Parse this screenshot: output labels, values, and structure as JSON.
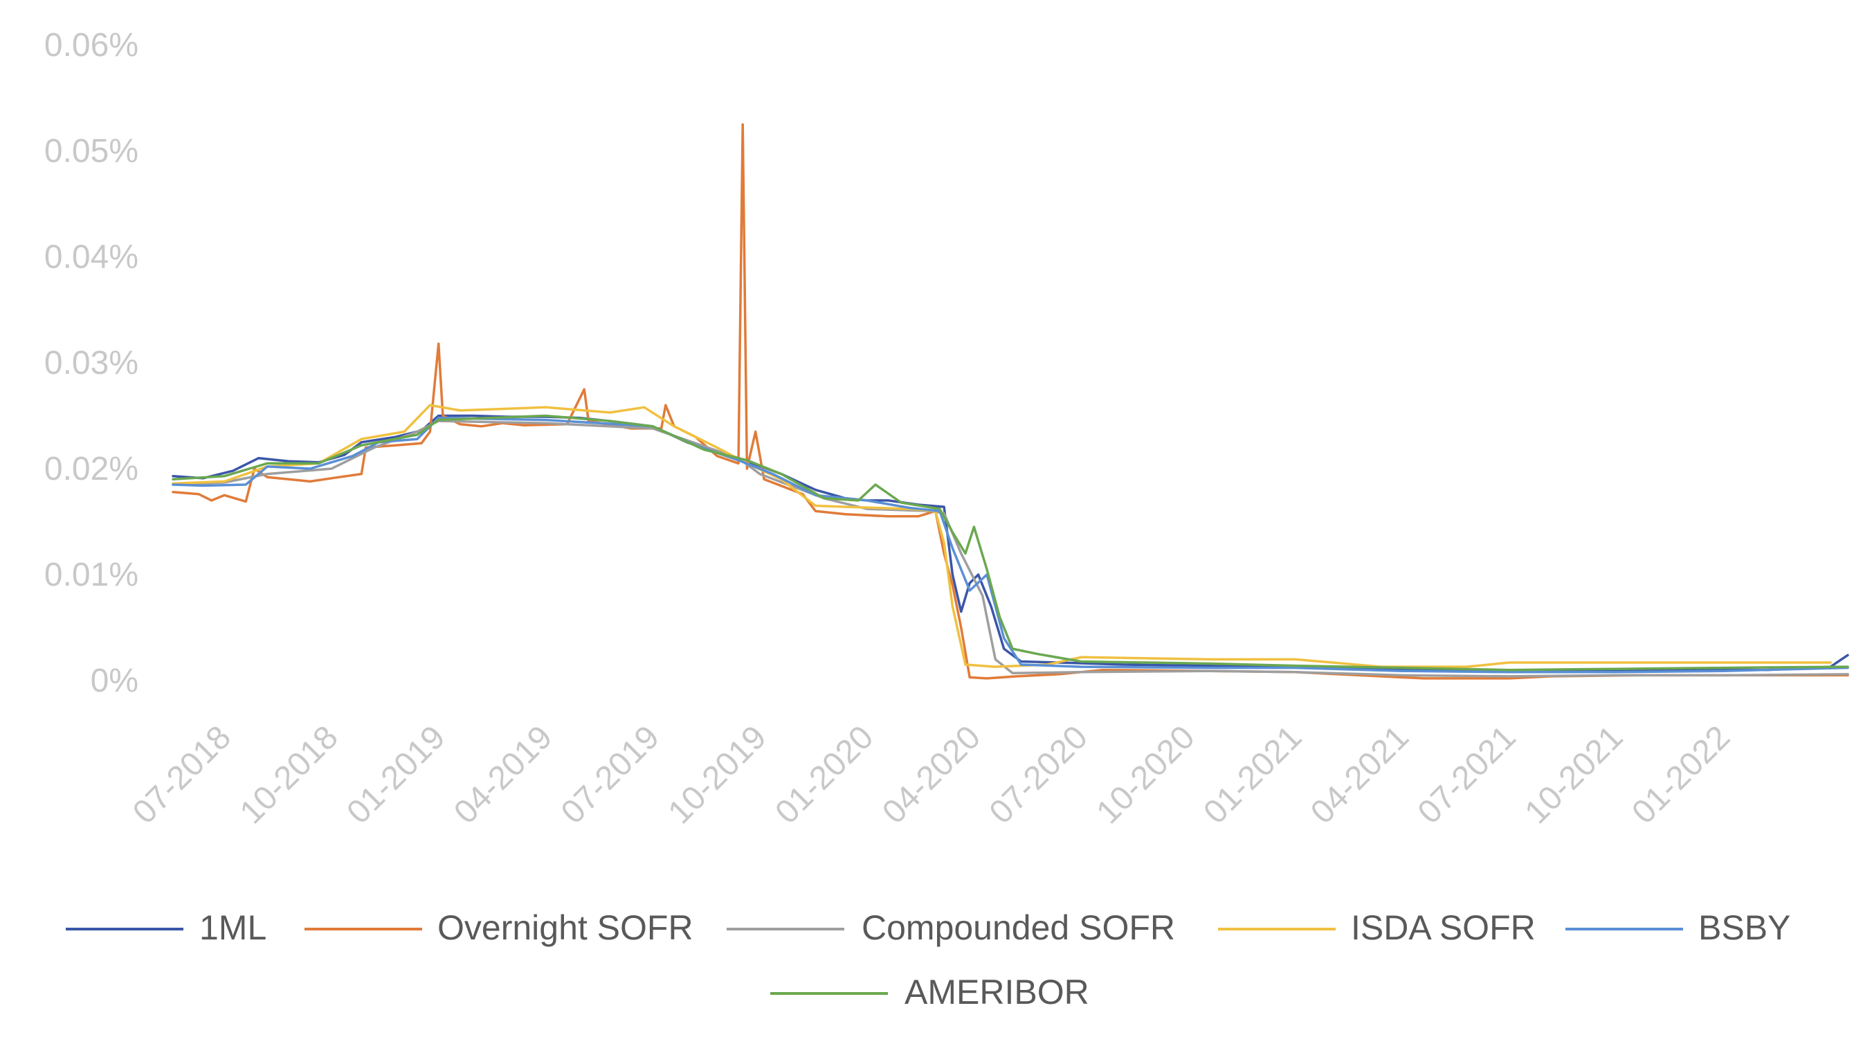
{
  "chart_data": {
    "type": "line",
    "title": "",
    "xlabel": "",
    "ylabel": "",
    "ylim": [
      0,
      0.06
    ],
    "y_ticks": [
      "0%",
      "0.01%",
      "0.02%",
      "0.03%",
      "0.04%",
      "0.05%",
      "0.06%"
    ],
    "y_tick_values": [
      0,
      0.01,
      0.02,
      0.03,
      0.04,
      0.05,
      0.06
    ],
    "x_range": [
      2018.38,
      2022.29
    ],
    "x_ticks": [
      "07-2018",
      "10-2018",
      "01-2019",
      "04-2019",
      "07-2019",
      "10-2019",
      "01-2020",
      "04-2020",
      "07-2020",
      "10-2020",
      "01-2021",
      "04-2021",
      "07-2021",
      "10-2021",
      "01-2022"
    ],
    "x_tick_values": [
      2018.5,
      2018.75,
      2019.0,
      2019.25,
      2019.5,
      2019.75,
      2020.0,
      2020.25,
      2020.5,
      2020.75,
      2021.0,
      2021.25,
      2021.5,
      2021.75,
      2022.0
    ],
    "grid": false,
    "legend_position": "bottom",
    "series": [
      {
        "name": "1ML",
        "color": "#3a56a8",
        "points": [
          [
            2018.38,
            0.0193
          ],
          [
            2018.45,
            0.0191
          ],
          [
            2018.52,
            0.0198
          ],
          [
            2018.58,
            0.021
          ],
          [
            2018.65,
            0.0207
          ],
          [
            2018.72,
            0.0206
          ],
          [
            2018.78,
            0.0213
          ],
          [
            2018.82,
            0.0225
          ],
          [
            2018.9,
            0.023
          ],
          [
            2018.96,
            0.0236
          ],
          [
            2019.0,
            0.025
          ],
          [
            2019.08,
            0.025
          ],
          [
            2019.16,
            0.0249
          ],
          [
            2019.25,
            0.0249
          ],
          [
            2019.33,
            0.0248
          ],
          [
            2019.42,
            0.0244
          ],
          [
            2019.5,
            0.024
          ],
          [
            2019.58,
            0.0225
          ],
          [
            2019.65,
            0.0215
          ],
          [
            2019.72,
            0.0207
          ],
          [
            2019.8,
            0.0195
          ],
          [
            2019.88,
            0.018
          ],
          [
            2019.95,
            0.0172
          ],
          [
            2020.0,
            0.017
          ],
          [
            2020.05,
            0.017
          ],
          [
            2020.12,
            0.0166
          ],
          [
            2020.18,
            0.0164
          ],
          [
            2020.2,
            0.01
          ],
          [
            2020.22,
            0.0065
          ],
          [
            2020.24,
            0.0092
          ],
          [
            2020.26,
            0.01
          ],
          [
            2020.29,
            0.007
          ],
          [
            2020.32,
            0.003
          ],
          [
            2020.36,
            0.0018
          ],
          [
            2020.45,
            0.0017
          ],
          [
            2020.6,
            0.0015
          ],
          [
            2020.8,
            0.0014
          ],
          [
            2021.0,
            0.0013
          ],
          [
            2021.2,
            0.0011
          ],
          [
            2021.4,
            0.001
          ],
          [
            2021.55,
            0.0009
          ],
          [
            2021.7,
            0.0009
          ],
          [
            2021.9,
            0.001
          ],
          [
            2022.1,
            0.001
          ],
          [
            2022.25,
            0.0013
          ],
          [
            2022.29,
            0.0024
          ]
        ]
      },
      {
        "name": "Overnight SOFR",
        "color": "#e07b39",
        "points": [
          [
            2018.38,
            0.0178
          ],
          [
            2018.44,
            0.0176
          ],
          [
            2018.47,
            0.017
          ],
          [
            2018.5,
            0.0175
          ],
          [
            2018.55,
            0.0169
          ],
          [
            2018.57,
            0.02
          ],
          [
            2018.6,
            0.0192
          ],
          [
            2018.65,
            0.019
          ],
          [
            2018.7,
            0.0188
          ],
          [
            2018.75,
            0.0191
          ],
          [
            2018.82,
            0.0195
          ],
          [
            2018.83,
            0.022
          ],
          [
            2018.9,
            0.0222
          ],
          [
            2018.96,
            0.0224
          ],
          [
            2018.98,
            0.0235
          ],
          [
            2019.0,
            0.0318
          ],
          [
            2019.01,
            0.025
          ],
          [
            2019.05,
            0.0242
          ],
          [
            2019.1,
            0.024
          ],
          [
            2019.15,
            0.0243
          ],
          [
            2019.2,
            0.0241
          ],
          [
            2019.3,
            0.0242
          ],
          [
            2019.34,
            0.0275
          ],
          [
            2019.35,
            0.0245
          ],
          [
            2019.45,
            0.0238
          ],
          [
            2019.52,
            0.0238
          ],
          [
            2019.53,
            0.026
          ],
          [
            2019.55,
            0.024
          ],
          [
            2019.6,
            0.023
          ],
          [
            2019.65,
            0.0212
          ],
          [
            2019.7,
            0.0205
          ],
          [
            2019.71,
            0.0525
          ],
          [
            2019.72,
            0.02
          ],
          [
            2019.74,
            0.0235
          ],
          [
            2019.76,
            0.019
          ],
          [
            2019.85,
            0.0176
          ],
          [
            2019.88,
            0.016
          ],
          [
            2019.95,
            0.0157
          ],
          [
            2020.05,
            0.0155
          ],
          [
            2020.12,
            0.0155
          ],
          [
            2020.16,
            0.016
          ],
          [
            2020.18,
            0.012
          ],
          [
            2020.2,
            0.009
          ],
          [
            2020.22,
            0.005
          ],
          [
            2020.24,
            0.0003
          ],
          [
            2020.28,
            0.0002
          ],
          [
            2020.35,
            0.0004
          ],
          [
            2020.45,
            0.0006
          ],
          [
            2020.55,
            0.001
          ],
          [
            2020.8,
            0.0009
          ],
          [
            2021.0,
            0.0008
          ],
          [
            2021.15,
            0.0005
          ],
          [
            2021.3,
            0.0002
          ],
          [
            2021.5,
            0.0002
          ],
          [
            2021.6,
            0.0004
          ],
          [
            2021.8,
            0.0005
          ],
          [
            2022.0,
            0.0005
          ],
          [
            2022.29,
            0.0005
          ]
        ]
      },
      {
        "name": "Compounded SOFR",
        "color": "#9e9e9e",
        "points": [
          [
            2018.38,
            0.0185
          ],
          [
            2018.5,
            0.0187
          ],
          [
            2018.6,
            0.0195
          ],
          [
            2018.75,
            0.02
          ],
          [
            2018.85,
            0.022
          ],
          [
            2018.95,
            0.0235
          ],
          [
            2019.0,
            0.0245
          ],
          [
            2019.25,
            0.0243
          ],
          [
            2019.5,
            0.0238
          ],
          [
            2019.7,
            0.021
          ],
          [
            2019.75,
            0.0195
          ],
          [
            2019.9,
            0.0172
          ],
          [
            2020.0,
            0.0162
          ],
          [
            2020.15,
            0.016
          ],
          [
            2020.18,
            0.0158
          ],
          [
            2020.22,
            0.012
          ],
          [
            2020.27,
            0.008
          ],
          [
            2020.3,
            0.002
          ],
          [
            2020.34,
            0.0007
          ],
          [
            2020.5,
            0.0008
          ],
          [
            2020.8,
            0.0009
          ],
          [
            2021.0,
            0.0008
          ],
          [
            2021.25,
            0.0005
          ],
          [
            2021.5,
            0.0004
          ],
          [
            2021.75,
            0.0005
          ],
          [
            2022.0,
            0.0005
          ],
          [
            2022.29,
            0.0006
          ]
        ]
      },
      {
        "name": "ISDA SOFR",
        "color": "#f0c040",
        "points": [
          [
            2018.38,
            0.0186
          ],
          [
            2018.5,
            0.0188
          ],
          [
            2018.6,
            0.0202
          ],
          [
            2018.72,
            0.0205
          ],
          [
            2018.82,
            0.0228
          ],
          [
            2018.92,
            0.0235
          ],
          [
            2018.98,
            0.026
          ],
          [
            2019.05,
            0.0255
          ],
          [
            2019.25,
            0.0258
          ],
          [
            2019.4,
            0.0253
          ],
          [
            2019.48,
            0.0258
          ],
          [
            2019.55,
            0.024
          ],
          [
            2019.65,
            0.022
          ],
          [
            2019.72,
            0.0205
          ],
          [
            2019.8,
            0.019
          ],
          [
            2019.88,
            0.0165
          ],
          [
            2019.95,
            0.0164
          ],
          [
            2020.1,
            0.0162
          ],
          [
            2020.16,
            0.016
          ],
          [
            2020.18,
            0.013
          ],
          [
            2020.2,
            0.007
          ],
          [
            2020.23,
            0.0015
          ],
          [
            2020.3,
            0.0013
          ],
          [
            2020.42,
            0.0015
          ],
          [
            2020.5,
            0.0022
          ],
          [
            2020.8,
            0.002
          ],
          [
            2021.0,
            0.002
          ],
          [
            2021.2,
            0.0013
          ],
          [
            2021.4,
            0.0013
          ],
          [
            2021.5,
            0.0017
          ],
          [
            2021.75,
            0.0017
          ],
          [
            2022.0,
            0.0017
          ],
          [
            2022.25,
            0.0017
          ]
        ]
      },
      {
        "name": "BSBY",
        "color": "#5a8fd6",
        "points": [
          [
            2018.38,
            0.0185
          ],
          [
            2018.45,
            0.0184
          ],
          [
            2018.55,
            0.0185
          ],
          [
            2018.6,
            0.0202
          ],
          [
            2018.7,
            0.02
          ],
          [
            2018.8,
            0.0212
          ],
          [
            2018.86,
            0.0225
          ],
          [
            2018.95,
            0.0228
          ],
          [
            2019.0,
            0.0248
          ],
          [
            2019.25,
            0.0246
          ],
          [
            2019.5,
            0.024
          ],
          [
            2019.6,
            0.0222
          ],
          [
            2019.7,
            0.0208
          ],
          [
            2019.78,
            0.0195
          ],
          [
            2019.88,
            0.0175
          ],
          [
            2020.0,
            0.017
          ],
          [
            2020.1,
            0.0163
          ],
          [
            2020.17,
            0.016
          ],
          [
            2020.2,
            0.0125
          ],
          [
            2020.24,
            0.0085
          ],
          [
            2020.28,
            0.01
          ],
          [
            2020.32,
            0.004
          ],
          [
            2020.36,
            0.0015
          ],
          [
            2020.5,
            0.0013
          ],
          [
            2020.8,
            0.0012
          ],
          [
            2021.0,
            0.0012
          ],
          [
            2021.25,
            0.0009
          ],
          [
            2021.5,
            0.0008
          ],
          [
            2021.75,
            0.0008
          ],
          [
            2022.0,
            0.0009
          ],
          [
            2022.29,
            0.0012
          ]
        ]
      },
      {
        "name": "AMERIBOR",
        "color": "#6aa84f",
        "points": [
          [
            2018.38,
            0.019
          ],
          [
            2018.5,
            0.0193
          ],
          [
            2018.6,
            0.0205
          ],
          [
            2018.72,
            0.0205
          ],
          [
            2018.82,
            0.0222
          ],
          [
            2018.95,
            0.0232
          ],
          [
            2019.0,
            0.0246
          ],
          [
            2019.25,
            0.025
          ],
          [
            2019.4,
            0.0245
          ],
          [
            2019.5,
            0.024
          ],
          [
            2019.62,
            0.0218
          ],
          [
            2019.72,
            0.0208
          ],
          [
            2019.8,
            0.0195
          ],
          [
            2019.9,
            0.0172
          ],
          [
            2019.98,
            0.017
          ],
          [
            2020.02,
            0.0185
          ],
          [
            2020.08,
            0.0168
          ],
          [
            2020.17,
            0.0162
          ],
          [
            2020.2,
            0.014
          ],
          [
            2020.23,
            0.012
          ],
          [
            2020.25,
            0.0145
          ],
          [
            2020.28,
            0.0105
          ],
          [
            2020.31,
            0.006
          ],
          [
            2020.34,
            0.003
          ],
          [
            2020.4,
            0.0025
          ],
          [
            2020.5,
            0.0018
          ],
          [
            2020.8,
            0.0016
          ],
          [
            2021.0,
            0.0014
          ],
          [
            2021.25,
            0.0012
          ],
          [
            2021.5,
            0.001
          ],
          [
            2021.75,
            0.0011
          ],
          [
            2022.0,
            0.0012
          ],
          [
            2022.29,
            0.0013
          ]
        ]
      }
    ]
  }
}
